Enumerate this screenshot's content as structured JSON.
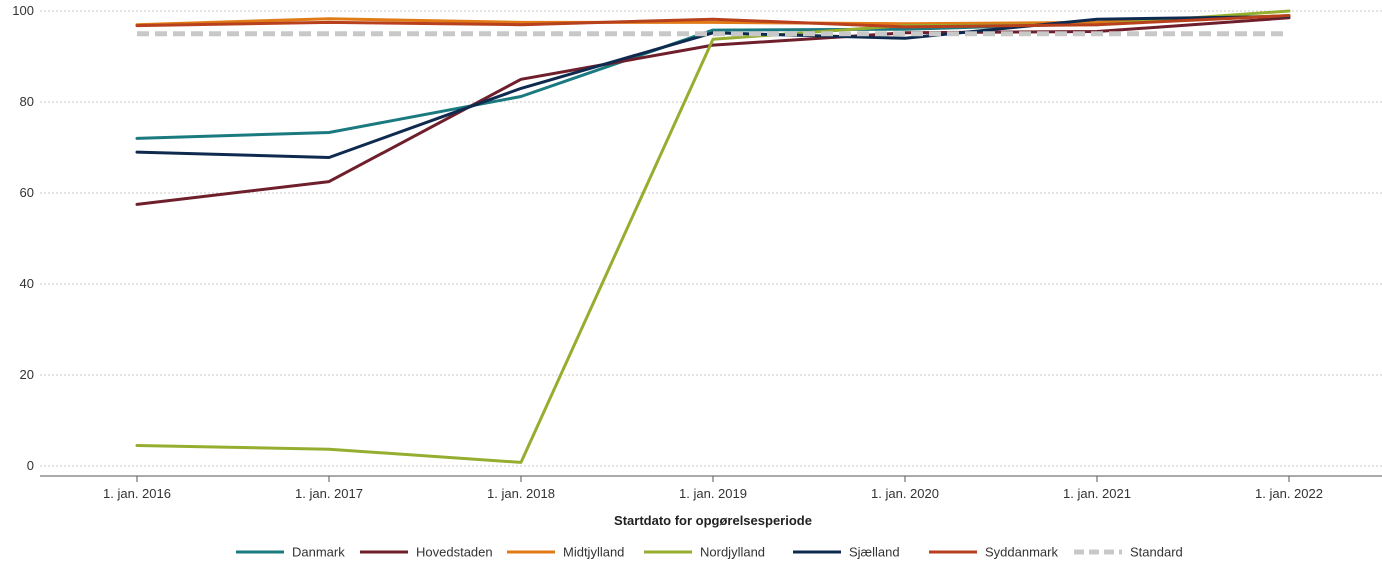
{
  "chart_data": {
    "type": "line",
    "xlabel": "Startdato for opgørelsesperiode",
    "ylabel": "",
    "categories": [
      "1. jan. 2016",
      "1. jan. 2017",
      "1. jan. 2018",
      "1. jan. 2019",
      "1. jan. 2020",
      "1. jan. 2021",
      "1. jan. 2022"
    ],
    "ylim": [
      0,
      100
    ],
    "yticks": [
      0,
      20,
      40,
      60,
      80,
      100
    ],
    "grid": true,
    "legend_position": "bottom",
    "series": [
      {
        "name": "Danmark",
        "color": "#1b7a7f",
        "dash": false,
        "values": [
          72.0,
          73.3,
          81.2,
          95.8,
          96.0,
          97.2,
          99.0
        ]
      },
      {
        "name": "Hovedstaden",
        "color": "#6e1f2b",
        "dash": false,
        "values": [
          57.5,
          62.5,
          85.0,
          92.5,
          95.2,
          95.5,
          98.5
        ]
      },
      {
        "name": "Midtjylland",
        "color": "#e07b17",
        "dash": false,
        "values": [
          97.0,
          98.3,
          97.5,
          97.5,
          97.2,
          97.5,
          99.0
        ]
      },
      {
        "name": "Nordjylland",
        "color": "#95ae2f",
        "dash": false,
        "values": [
          4.5,
          3.7,
          0.8,
          93.8,
          96.8,
          97.0,
          100.0
        ]
      },
      {
        "name": "Sjælland",
        "color": "#0f2a4f",
        "dash": false,
        "values": [
          69.0,
          67.8,
          83.0,
          95.2,
          94.0,
          98.2,
          98.8
        ]
      },
      {
        "name": "Syddanmark",
        "color": "#b8401c",
        "dash": false,
        "values": [
          96.8,
          97.5,
          97.0,
          98.2,
          96.5,
          97.0,
          99.0
        ]
      },
      {
        "name": "Standard",
        "color": "#c8c8c8",
        "dash": true,
        "values": [
          95,
          95,
          95,
          95,
          95,
          95,
          95
        ]
      }
    ]
  }
}
